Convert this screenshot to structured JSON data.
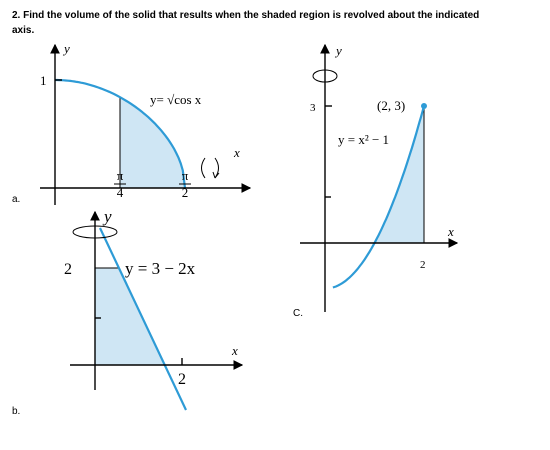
{
  "question": {
    "line1": "2. Find the volume of the solid that results when the shaded region is revolved about the indicated",
    "line2": "axis."
  },
  "parts": [
    {
      "label": "a.",
      "y_axis": "y",
      "x_axis": "x",
      "y_tick": "1",
      "equation": "y= √cos x",
      "x_ticks": [
        {
          "numerator": "π",
          "denominator": "4"
        },
        {
          "numerator": "π",
          "denominator": "2"
        }
      ]
    },
    {
      "label": "b.",
      "y_axis": "y",
      "x_axis": "x",
      "y_tick": "2",
      "equation": "y = 3 − 2x",
      "x_tick": "2"
    },
    {
      "label": "C.",
      "y_axis": "y",
      "x_axis": "x",
      "y_tick": "3",
      "point": "(2, 3)",
      "equation": "y = x² − 1",
      "x_tick": "2"
    }
  ]
}
